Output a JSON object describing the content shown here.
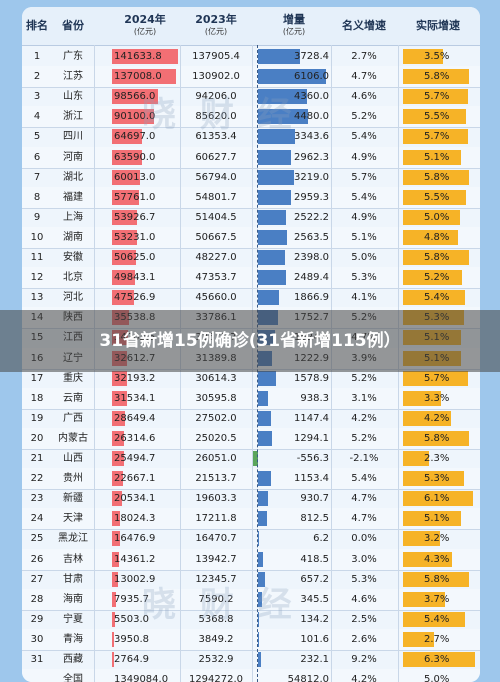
{
  "headers": {
    "rank": "排名",
    "province": "省份",
    "y2024": "2024年",
    "y2024_unit": "(亿元)",
    "y2023": "2023年",
    "y2023_unit": "(亿元)",
    "increase": "增量",
    "increase_unit": "(亿元)",
    "nominal": "名义增速",
    "real": "实际增速"
  },
  "rows": [
    {
      "rank": "1",
      "prov": "广东",
      "v24": "141633.8",
      "v24n": 141633.8,
      "v23": "137905.4",
      "inc": "3728.4",
      "incn": 3728.4,
      "nom": "2.7%",
      "real": "3.5%",
      "realn": 3.5
    },
    {
      "rank": "2",
      "prov": "江苏",
      "v24": "137008.0",
      "v24n": 137008.0,
      "v23": "130902.0",
      "inc": "6106.0",
      "incn": 6106.0,
      "nom": "4.7%",
      "real": "5.8%",
      "realn": 5.8
    },
    {
      "rank": "3",
      "prov": "山东",
      "v24": "98566.0",
      "v24n": 98566.0,
      "v23": "94206.0",
      "inc": "4360.0",
      "incn": 4360.0,
      "nom": "4.6%",
      "real": "5.7%",
      "realn": 5.7
    },
    {
      "rank": "4",
      "prov": "浙江",
      "v24": "90100.0",
      "v24n": 90100.0,
      "v23": "85620.0",
      "inc": "4480.0",
      "incn": 4480.0,
      "nom": "5.2%",
      "real": "5.5%",
      "realn": 5.5
    },
    {
      "rank": "5",
      "prov": "四川",
      "v24": "64697.0",
      "v24n": 64697.0,
      "v23": "61353.4",
      "inc": "3343.6",
      "incn": 3343.6,
      "nom": "5.4%",
      "real": "5.7%",
      "realn": 5.7
    },
    {
      "rank": "6",
      "prov": "河南",
      "v24": "63590.0",
      "v24n": 63590.0,
      "v23": "60627.7",
      "inc": "2962.3",
      "incn": 2962.3,
      "nom": "4.9%",
      "real": "5.1%",
      "realn": 5.1
    },
    {
      "rank": "7",
      "prov": "湖北",
      "v24": "60013.0",
      "v24n": 60013.0,
      "v23": "56794.0",
      "inc": "3219.0",
      "incn": 3219.0,
      "nom": "5.7%",
      "real": "5.8%",
      "realn": 5.8
    },
    {
      "rank": "8",
      "prov": "福建",
      "v24": "57761.0",
      "v24n": 57761.0,
      "v23": "54801.7",
      "inc": "2959.3",
      "incn": 2959.3,
      "nom": "5.4%",
      "real": "5.5%",
      "realn": 5.5
    },
    {
      "rank": "9",
      "prov": "上海",
      "v24": "53926.7",
      "v24n": 53926.7,
      "v23": "51404.5",
      "inc": "2522.2",
      "incn": 2522.2,
      "nom": "4.9%",
      "real": "5.0%",
      "realn": 5.0
    },
    {
      "rank": "10",
      "prov": "湖南",
      "v24": "53231.0",
      "v24n": 53231.0,
      "v23": "50667.5",
      "inc": "2563.5",
      "incn": 2563.5,
      "nom": "5.1%",
      "real": "4.8%",
      "realn": 4.8
    },
    {
      "rank": "11",
      "prov": "安徽",
      "v24": "50625.0",
      "v24n": 50625.0,
      "v23": "48227.0",
      "inc": "2398.0",
      "incn": 2398.0,
      "nom": "5.0%",
      "real": "5.8%",
      "realn": 5.8
    },
    {
      "rank": "12",
      "prov": "北京",
      "v24": "49843.1",
      "v24n": 49843.1,
      "v23": "47353.7",
      "inc": "2489.4",
      "incn": 2489.4,
      "nom": "5.3%",
      "real": "5.2%",
      "realn": 5.2
    },
    {
      "rank": "13",
      "prov": "河北",
      "v24": "47526.9",
      "v24n": 47526.9,
      "v23": "45660.0",
      "inc": "1866.9",
      "incn": 1866.9,
      "nom": "4.1%",
      "real": "5.4%",
      "realn": 5.4
    },
    {
      "rank": "14",
      "prov": "陕西",
      "v24": "35538.8",
      "v24n": 35538.8,
      "v23": "33786.1",
      "inc": "1752.7",
      "incn": 1752.7,
      "nom": "5.2%",
      "real": "5.3%",
      "realn": 5.3
    },
    {
      "rank": "15",
      "prov": "江西",
      "v24": "34202.5",
      "v24n": 34202.5,
      "v23": "32677.7",
      "inc": "1524.8",
      "incn": 1524.8,
      "nom": "4.7%",
      "real": "5.1%",
      "realn": 5.1
    },
    {
      "rank": "16",
      "prov": "辽宁",
      "v24": "32612.7",
      "v24n": 32612.7,
      "v23": "31389.8",
      "inc": "1222.9",
      "incn": 1222.9,
      "nom": "3.9%",
      "real": "5.1%",
      "realn": 5.1
    },
    {
      "rank": "17",
      "prov": "重庆",
      "v24": "32193.2",
      "v24n": 32193.2,
      "v23": "30614.3",
      "inc": "1578.9",
      "incn": 1578.9,
      "nom": "5.2%",
      "real": "5.7%",
      "realn": 5.7
    },
    {
      "rank": "18",
      "prov": "云南",
      "v24": "31534.1",
      "v24n": 31534.1,
      "v23": "30595.8",
      "inc": "938.3",
      "incn": 938.3,
      "nom": "3.1%",
      "real": "3.3%",
      "realn": 3.3
    },
    {
      "rank": "19",
      "prov": "广西",
      "v24": "28649.4",
      "v24n": 28649.4,
      "v23": "27502.0",
      "inc": "1147.4",
      "incn": 1147.4,
      "nom": "4.2%",
      "real": "4.2%",
      "realn": 4.2
    },
    {
      "rank": "20",
      "prov": "内蒙古",
      "v24": "26314.6",
      "v24n": 26314.6,
      "v23": "25020.5",
      "inc": "1294.1",
      "incn": 1294.1,
      "nom": "5.2%",
      "real": "5.8%",
      "realn": 5.8
    },
    {
      "rank": "21",
      "prov": "山西",
      "v24": "25494.7",
      "v24n": 25494.7,
      "v23": "26051.0",
      "inc": "-556.3",
      "incn": -556.3,
      "nom": "-2.1%",
      "real": "2.3%",
      "realn": 2.3
    },
    {
      "rank": "22",
      "prov": "贵州",
      "v24": "22667.1",
      "v24n": 22667.1,
      "v23": "21513.7",
      "inc": "1153.4",
      "incn": 1153.4,
      "nom": "5.4%",
      "real": "5.3%",
      "realn": 5.3
    },
    {
      "rank": "23",
      "prov": "新疆",
      "v24": "20534.1",
      "v24n": 20534.1,
      "v23": "19603.3",
      "inc": "930.7",
      "incn": 930.7,
      "nom": "4.7%",
      "real": "6.1%",
      "realn": 6.1
    },
    {
      "rank": "24",
      "prov": "天津",
      "v24": "18024.3",
      "v24n": 18024.3,
      "v23": "17211.8",
      "inc": "812.5",
      "incn": 812.5,
      "nom": "4.7%",
      "real": "5.1%",
      "realn": 5.1
    },
    {
      "rank": "25",
      "prov": "黑龙江",
      "v24": "16476.9",
      "v24n": 16476.9,
      "v23": "16470.7",
      "inc": "6.2",
      "incn": 6.2,
      "nom": "0.0%",
      "real": "3.2%",
      "realn": 3.2
    },
    {
      "rank": "26",
      "prov": "吉林",
      "v24": "14361.2",
      "v24n": 14361.2,
      "v23": "13942.7",
      "inc": "418.5",
      "incn": 418.5,
      "nom": "3.0%",
      "real": "4.3%",
      "realn": 4.3
    },
    {
      "rank": "27",
      "prov": "甘肃",
      "v24": "13002.9",
      "v24n": 13002.9,
      "v23": "12345.7",
      "inc": "657.2",
      "incn": 657.2,
      "nom": "5.3%",
      "real": "5.8%",
      "realn": 5.8
    },
    {
      "rank": "28",
      "prov": "海南",
      "v24": "7935.7",
      "v24n": 7935.7,
      "v23": "7590.2",
      "inc": "345.5",
      "incn": 345.5,
      "nom": "4.6%",
      "real": "3.7%",
      "realn": 3.7
    },
    {
      "rank": "29",
      "prov": "宁夏",
      "v24": "5503.0",
      "v24n": 5503.0,
      "v23": "5368.8",
      "inc": "134.2",
      "incn": 134.2,
      "nom": "2.5%",
      "real": "5.4%",
      "realn": 5.4
    },
    {
      "rank": "30",
      "prov": "青海",
      "v24": "3950.8",
      "v24n": 3950.8,
      "v23": "3849.2",
      "inc": "101.6",
      "incn": 101.6,
      "nom": "2.6%",
      "real": "2.7%",
      "realn": 2.7
    },
    {
      "rank": "31",
      "prov": "西藏",
      "v24": "2764.9",
      "v24n": 2764.9,
      "v23": "2532.9",
      "inc": "232.1",
      "incn": 232.1,
      "nom": "9.2%",
      "real": "6.3%",
      "realn": 6.3
    },
    {
      "rank": "",
      "prov": "全国",
      "v24": "1349084.0",
      "v24n": 0,
      "v23": "1294272.0",
      "inc": "54812.0",
      "incn": 0,
      "nom": "4.2%",
      "real": "5.0%",
      "realn": 0
    }
  ],
  "overlay_title": "31省新增15例确诊(31省新增115例）",
  "watermark": "晓 财 经",
  "colors": {
    "bar2024": "#f26f74",
    "barInc": "#4a7fc4",
    "barNeg": "#5ba65c",
    "barReal": "#f6b327"
  }
}
